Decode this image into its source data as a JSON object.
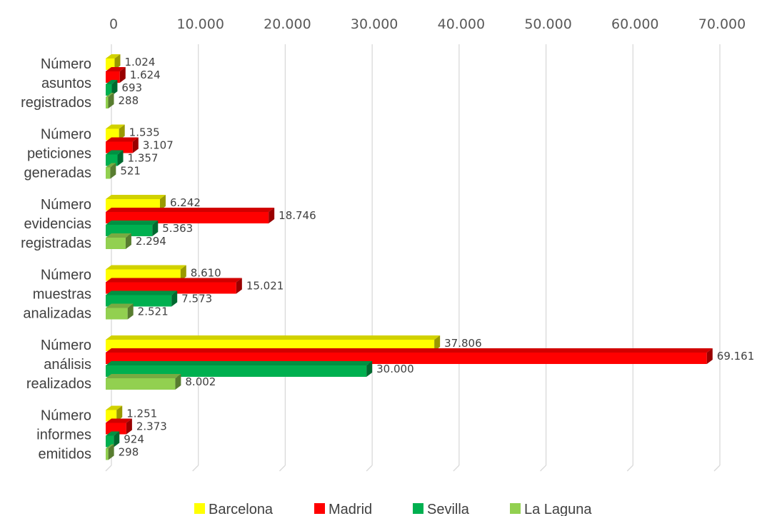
{
  "chart_data": {
    "type": "bar",
    "orientation": "horizontal",
    "style": "3d",
    "title": "",
    "xlabel": "",
    "ylabel": "",
    "xlim": [
      0,
      70000
    ],
    "x_tick_labels": [
      "0",
      "10.000",
      "20.000",
      "30.000",
      "40.000",
      "50.000",
      "60.000",
      "70.000"
    ],
    "x_ticks": [
      0,
      10000,
      20000,
      30000,
      40000,
      50000,
      60000,
      70000
    ],
    "x_axis_position": "top",
    "grid": true,
    "legend_position": "bottom",
    "categories": [
      [
        "Número",
        "asuntos",
        "registrados"
      ],
      [
        "Número",
        "peticiones",
        "generadas"
      ],
      [
        "Número",
        "evidencias",
        "registradas"
      ],
      [
        "Número",
        "muestras",
        "analizadas"
      ],
      [
        "Número",
        "análisis",
        "realizados"
      ],
      [
        "Número",
        "informes",
        "emitidos"
      ]
    ],
    "series": [
      {
        "name": "Barcelona",
        "color": "#ffff00",
        "values": [
          1024,
          1535,
          6242,
          8610,
          37806,
          1251
        ],
        "labels": [
          "1.024",
          "1.535",
          "6.242",
          "8.610",
          "37.806",
          "1.251"
        ]
      },
      {
        "name": "Madrid",
        "color": "#ff0000",
        "values": [
          1624,
          3107,
          18746,
          15021,
          69161,
          2373
        ],
        "labels": [
          "1.624",
          "3.107",
          "18.746",
          "15.021",
          "69.161",
          "2.373"
        ]
      },
      {
        "name": "Sevilla",
        "color": "#00b050",
        "values": [
          693,
          1357,
          5363,
          7573,
          30000,
          924
        ],
        "labels": [
          "693",
          "1.357",
          "5.363",
          "7.573",
          "30.000",
          "924"
        ]
      },
      {
        "name": "La Laguna",
        "color": "#92d050",
        "values": [
          288,
          521,
          2294,
          2521,
          8002,
          298
        ],
        "labels": [
          "288",
          "521",
          "2.294",
          "2.521",
          "8.002",
          "298"
        ]
      }
    ]
  }
}
